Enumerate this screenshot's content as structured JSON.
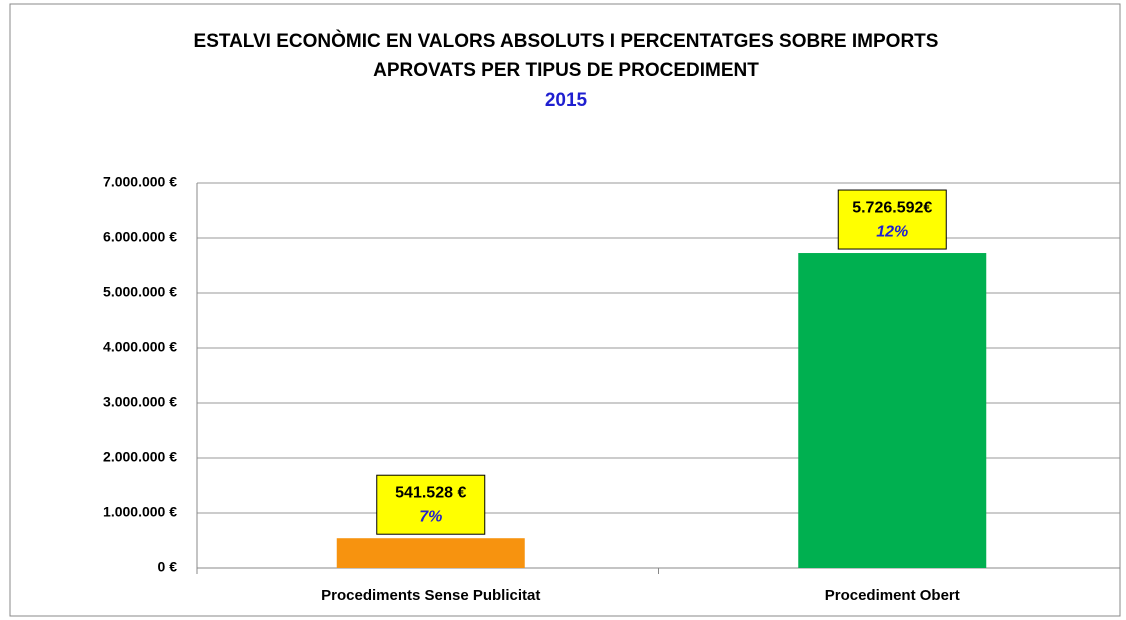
{
  "chart_data": {
    "type": "bar",
    "title": [
      "ESTALVI ECONÒMIC EN VALORS ABSOLUTS I PERCENTATGES SOBRE IMPORTS",
      "APROVATS PER TIPUS DE PROCEDIMENT"
    ],
    "subtitle": "2015",
    "categories": [
      "Procediments Sense Publicitat",
      "Procediment Obert"
    ],
    "values": [
      541528,
      5726592
    ],
    "value_labels": [
      "541.528 €",
      "5.726.592€"
    ],
    "percentages": [
      7,
      12
    ],
    "percentage_labels": [
      "7%",
      "12%"
    ],
    "colors": [
      "#f7930f",
      "#00b050"
    ],
    "ylim": [
      0,
      7000000
    ],
    "yticks": [
      {
        "value": 0,
        "label": "0 €"
      },
      {
        "value": 1000000,
        "label": "1.000.000 €"
      },
      {
        "value": 2000000,
        "label": "2.000.000 €"
      },
      {
        "value": 3000000,
        "label": "3.000.000 €"
      },
      {
        "value": 4000000,
        "label": "4.000.000 €"
      },
      {
        "value": 5000000,
        "label": "5.000.000 €"
      },
      {
        "value": 6000000,
        "label": "6.000.000 €"
      },
      {
        "value": 7000000,
        "label": "7.000.000 €"
      }
    ],
    "grid": true
  }
}
